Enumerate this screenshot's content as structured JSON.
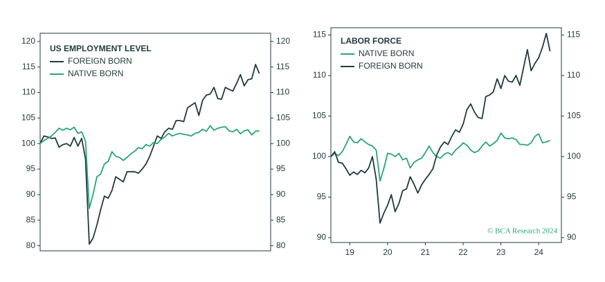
{
  "chart_data": [
    {
      "type": "line",
      "title": "US EMPLOYMENT LEVEL",
      "x": [
        18.5,
        18.6,
        18.7,
        18.8,
        18.9,
        19.0,
        19.1,
        19.2,
        19.3,
        19.4,
        19.5,
        19.6,
        19.7,
        19.8,
        19.9,
        20.0,
        20.1,
        20.2,
        20.3,
        20.4,
        20.5,
        20.6,
        20.7,
        20.8,
        20.9,
        21.0,
        21.1,
        21.2,
        21.3,
        21.4,
        21.5,
        21.6,
        21.7,
        21.8,
        21.9,
        22.0,
        22.1,
        22.2,
        22.3,
        22.4,
        22.5,
        22.6,
        22.7,
        22.8,
        22.9,
        23.0,
        23.1,
        23.2,
        23.3,
        23.4,
        23.5,
        23.6,
        23.7,
        23.8,
        23.9,
        24.0,
        24.1,
        24.2,
        24.3
      ],
      "xlim": [
        18.5,
        24.6
      ],
      "series": [
        {
          "name": "FOREIGN BORN",
          "color": "#1f3a3d",
          "values": [
            100,
            101.5,
            101.3,
            101,
            101.1,
            99.3,
            99.8,
            100,
            99.5,
            101.2,
            99.5,
            101,
            97,
            80.3,
            81.5,
            84,
            87,
            89.7,
            89.3,
            90.8,
            93.5,
            93,
            92.5,
            94.5,
            94.5,
            94.5,
            94.2,
            95,
            96,
            97.5,
            99.5,
            101.5,
            101,
            102.3,
            103,
            102.8,
            104.5,
            104.5,
            104.3,
            107,
            107.5,
            108,
            105.5,
            108.5,
            109.5,
            109.7,
            111,
            108.8,
            108.7,
            111,
            110.6,
            110.3,
            111.8,
            113.5,
            111.3,
            112.5,
            112.7,
            115.5,
            113.7
          ]
        },
        {
          "name": "NATIVE BORN",
          "color": "#2aa37a",
          "values": [
            100,
            100.6,
            101,
            101.5,
            102.2,
            103,
            102.6,
            103,
            102.7,
            103.2,
            102,
            102.3,
            100.5,
            87.3,
            90,
            93.5,
            94,
            96,
            96.5,
            98.4,
            97.5,
            97.3,
            96.7,
            97.3,
            98,
            98.5,
            99.2,
            99,
            99.8,
            99.5,
            100.2,
            100,
            100.8,
            101.3,
            102,
            101.5,
            101.8,
            102,
            101.8,
            101.7,
            101.5,
            102,
            102.2,
            102.8,
            102.4,
            103.5,
            102.6,
            103,
            103.2,
            103.3,
            102.5,
            102.3,
            102.8,
            101.9,
            102.5,
            102.7,
            101.7,
            102.4,
            102.5
          ]
        }
      ],
      "ylim": [
        79,
        121.6
      ],
      "yticks": [
        80,
        85,
        90,
        95,
        100,
        105,
        110,
        115,
        120
      ],
      "y2lim": [
        79,
        121.6
      ],
      "y2ticks": [
        80,
        85,
        90,
        95,
        100,
        105,
        110,
        115,
        120
      ]
    },
    {
      "type": "line",
      "title": "LABOR FORCE",
      "x": [
        18.5,
        18.6,
        18.7,
        18.8,
        18.9,
        19.0,
        19.1,
        19.2,
        19.3,
        19.4,
        19.5,
        19.6,
        19.7,
        19.8,
        19.9,
        20.0,
        20.1,
        20.2,
        20.3,
        20.4,
        20.5,
        20.6,
        20.7,
        20.8,
        20.9,
        21.0,
        21.1,
        21.2,
        21.3,
        21.4,
        21.5,
        21.6,
        21.7,
        21.8,
        21.9,
        22.0,
        22.1,
        22.2,
        22.3,
        22.4,
        22.5,
        22.6,
        22.7,
        22.8,
        22.9,
        23.0,
        23.1,
        23.2,
        23.3,
        23.4,
        23.5,
        23.6,
        23.7,
        23.8,
        23.9,
        24.0,
        24.1,
        24.2,
        24.3
      ],
      "xlim": [
        18.5,
        24.6
      ],
      "xticks": [
        19,
        20,
        21,
        22,
        23,
        24
      ],
      "series": [
        {
          "name": "NATIVE BORN",
          "color": "#2aa37a",
          "values": [
            100,
            100.4,
            100.1,
            100.6,
            101.5,
            102.5,
            101.8,
            101.7,
            102.2,
            101.8,
            101.5,
            101.3,
            100.8,
            97,
            98.5,
            100.4,
            100.3,
            100,
            100.4,
            99.6,
            99.8,
            98.6,
            99.3,
            99.6,
            99.8,
            100.5,
            101.3,
            100.5,
            100,
            99.8,
            100.3,
            100.5,
            100.2,
            100.8,
            101.2,
            101.7,
            101.4,
            100.8,
            100.5,
            100.7,
            101.3,
            101.8,
            101.3,
            101.6,
            102,
            102.9,
            102.3,
            102.2,
            102.3,
            102.1,
            101.5,
            101.5,
            101.4,
            101.7,
            102.5,
            102.8,
            101.7,
            101.8,
            102
          ]
        },
        {
          "name": "FOREIGN BORN",
          "color": "#1f3a3d",
          "values": [
            100,
            100.6,
            99.3,
            99.2,
            98.5,
            97.7,
            98.1,
            97.8,
            98.3,
            98,
            98.6,
            100,
            97.2,
            91.8,
            93,
            94,
            95.3,
            93.2,
            94.2,
            95.8,
            96,
            97.5,
            96.6,
            95.5,
            96.5,
            97.2,
            97.8,
            98.5,
            100.2,
            101.2,
            101.8,
            101.5,
            102.5,
            103.3,
            103,
            104,
            105.8,
            106.5,
            105.5,
            104.8,
            104.7,
            107.4,
            107.6,
            108,
            109.6,
            108.4,
            110,
            109.3,
            109.2,
            110,
            108.8,
            111,
            113.2,
            110.6,
            111.5,
            112.2,
            113.5,
            115.2,
            113
          ]
        }
      ],
      "ylim": [
        89.4,
        115.9
      ],
      "yticks": [
        90,
        95,
        100,
        105,
        110,
        115
      ],
      "y2lim": [
        89.4,
        115.9
      ],
      "y2ticks": [
        90,
        95,
        100,
        105,
        110,
        115
      ],
      "annotation": "© BCA Research 2024"
    }
  ]
}
